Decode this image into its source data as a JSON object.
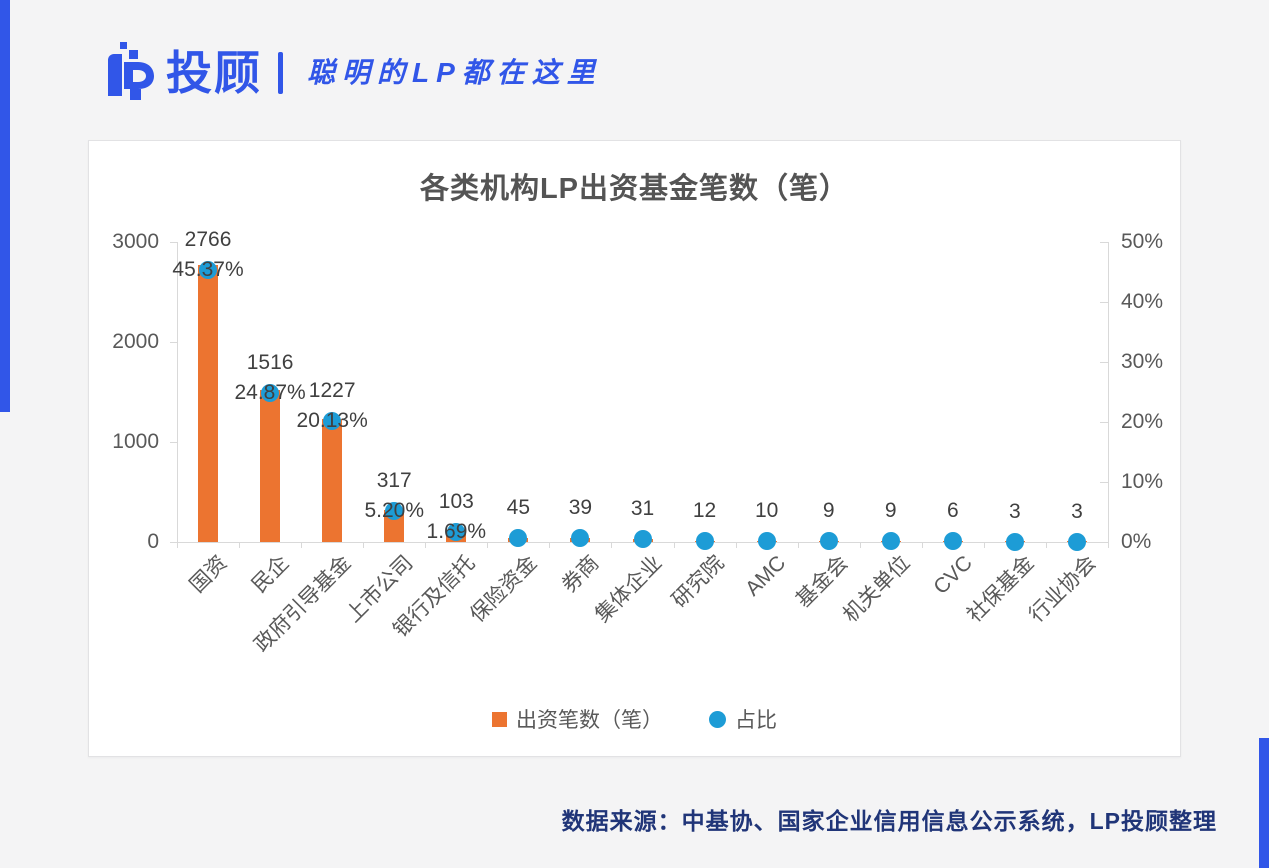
{
  "header": {
    "brand": "投顾",
    "slogan": "聪明的LP都在这里",
    "accent_color": "#3156e8"
  },
  "chart_data": {
    "type": "bar",
    "subtype": "combo bar + scatter (secondary percent axis)",
    "title": "各类机构LP出资基金笔数（笔）",
    "categories": [
      "国资",
      "民企",
      "政府引导基金",
      "上市公司",
      "银行及信托",
      "保险资金",
      "券商",
      "集体企业",
      "研究院",
      "AMC",
      "基金会",
      "机关单位",
      "CVC",
      "社保基金",
      "行业协会"
    ],
    "series": [
      {
        "name": "出资笔数（笔）",
        "type": "bar",
        "color": "#ec7430",
        "values": [
          2766,
          1516,
          1227,
          317,
          103,
          45,
          39,
          31,
          12,
          10,
          9,
          9,
          6,
          3,
          3
        ]
      },
      {
        "name": "占比",
        "type": "scatter",
        "color": "#1d9cd6",
        "values_pct": [
          45.37,
          24.87,
          20.13,
          5.2,
          1.69,
          0.74,
          0.64,
          0.51,
          0.2,
          0.16,
          0.15,
          0.15,
          0.1,
          0.05,
          0.05
        ],
        "point_labels": [
          "45.37%",
          "24.87%",
          "20.13%",
          "5.20%",
          "1.69%",
          "",
          "",
          "",
          "",
          "",
          "",
          "",
          "",
          "",
          ""
        ]
      }
    ],
    "left_axis": {
      "min": 0,
      "max": 3000,
      "tick_labels": [
        "0",
        "1000",
        "2000",
        "3000"
      ]
    },
    "right_axis": {
      "min_label": "0%",
      "max_label": "50%",
      "tick_labels": [
        "0%",
        "10%",
        "20%",
        "30%",
        "40%",
        "50%"
      ]
    },
    "grid": "off",
    "legend_position": "bottom",
    "legend": [
      {
        "label": "出资笔数（笔）",
        "swatch": "square",
        "color": "#ec7430"
      },
      {
        "label": "占比",
        "swatch": "circle",
        "color": "#1d9cd6"
      }
    ]
  },
  "footer": {
    "source": "数据来源：中基协、国家企业信用信息公示系统，LP投顾整理"
  }
}
